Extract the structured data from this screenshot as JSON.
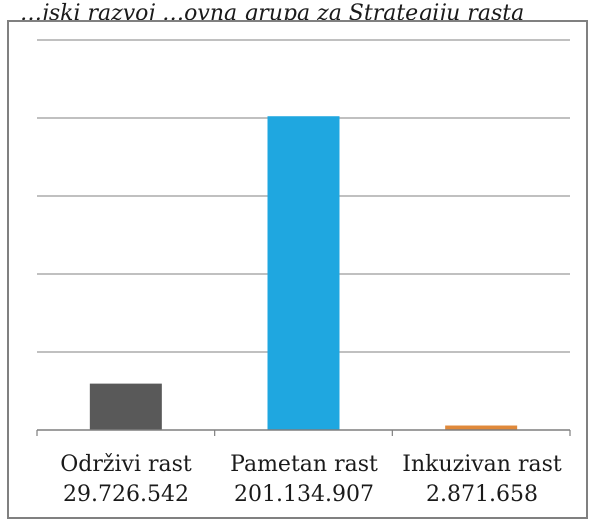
{
  "header_fragment": "…jski razvoj …ovna grupa za Strategiju rasta",
  "colors": {
    "frame": "#808080",
    "gridline": "#9a9a9a",
    "axis": "#7f7f7f",
    "bar_1": "#595959",
    "bar_2": "#1fa7e0",
    "bar_3": "#e0893a"
  },
  "chart_data": {
    "type": "bar",
    "categories": [
      "Održivi rast",
      "Pametan rast",
      "Inkuzivan rast"
    ],
    "value_labels": [
      "29.726.542",
      "201.134.907",
      "2.871.658"
    ],
    "values": [
      29726542,
      201134907,
      2871658
    ],
    "title": "",
    "xlabel": "",
    "ylabel": "",
    "ylim": [
      0,
      250000000
    ],
    "grid": true,
    "legend": "none"
  }
}
